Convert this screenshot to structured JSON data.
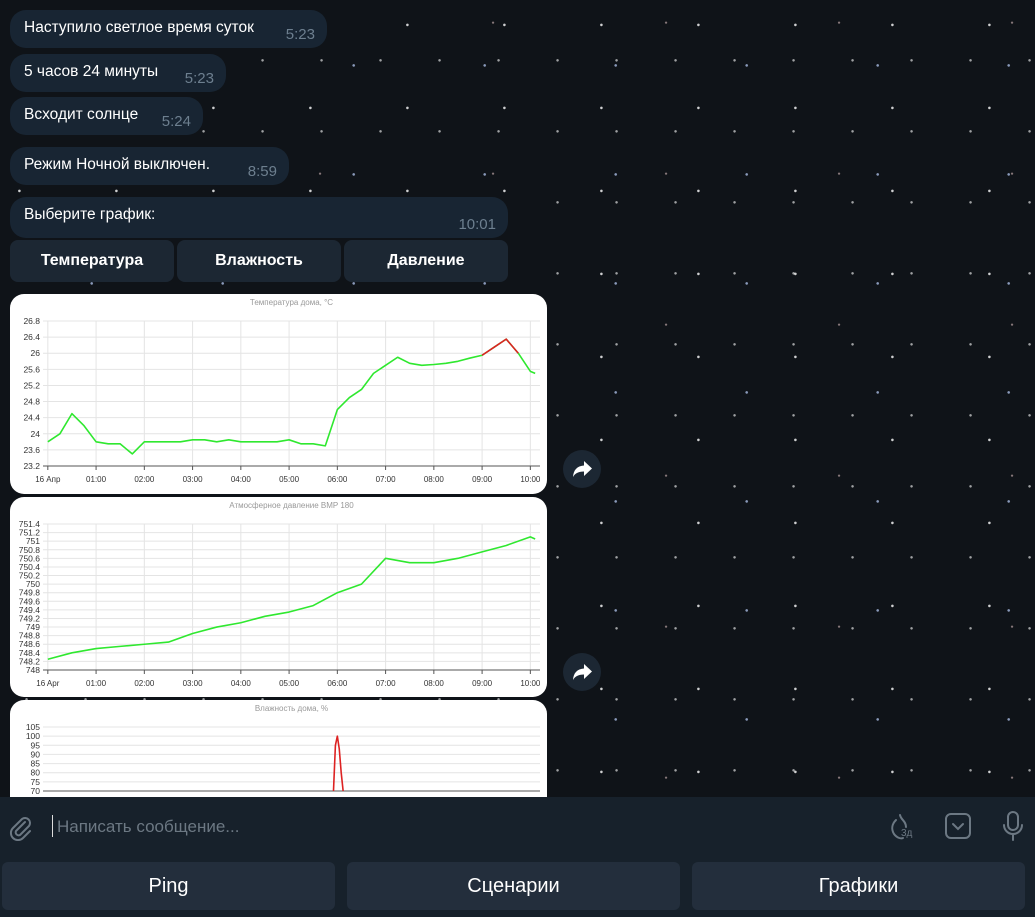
{
  "messages": [
    {
      "text": "Наступило светлое время суток",
      "time": "5:23"
    },
    {
      "text": "5 часов 24 минуты",
      "time": "5:23"
    },
    {
      "text": "Всходит солнце",
      "time": "5:24"
    },
    {
      "text": "Режим Ночной выключен.",
      "time": "8:59"
    }
  ],
  "prompt": {
    "text": "Выберите график:",
    "time": "10:01"
  },
  "inline_buttons": [
    "Температура",
    "Влажность",
    "Давление"
  ],
  "chart_data": [
    {
      "type": "line",
      "title": "Температура дома, °C",
      "x": [
        0,
        0.25,
        0.5,
        0.75,
        1,
        1.25,
        1.5,
        1.75,
        2,
        2.25,
        2.5,
        2.75,
        3,
        3.25,
        3.5,
        3.75,
        4,
        4.25,
        4.5,
        4.75,
        5,
        5.25,
        5.5,
        5.75,
        6,
        6.25,
        6.5,
        6.75,
        7,
        7.25,
        7.5,
        7.75,
        8,
        8.25,
        8.5,
        8.75,
        9,
        9.25,
        9.5,
        9.75,
        10,
        10.1
      ],
      "series": [
        {
          "color": "#2fe82f",
          "values": [
            23.8,
            24.0,
            24.5,
            24.2,
            23.8,
            23.75,
            23.75,
            23.5,
            23.8,
            23.8,
            23.8,
            23.8,
            23.85,
            23.85,
            23.8,
            23.85,
            23.8,
            23.8,
            23.8,
            23.8,
            23.85,
            23.75,
            23.75,
            23.7,
            24.6,
            24.9,
            25.1,
            25.5,
            25.7,
            25.9,
            25.75,
            25.7,
            25.72,
            25.75,
            25.8,
            25.88,
            25.95,
            26.15,
            26.35,
            26.0,
            25.55,
            25.5
          ]
        },
        {
          "color": "#dd2222",
          "values": [
            null,
            null,
            null,
            null,
            null,
            null,
            null,
            null,
            null,
            null,
            null,
            null,
            null,
            null,
            null,
            null,
            null,
            null,
            null,
            null,
            null,
            null,
            null,
            null,
            null,
            null,
            null,
            null,
            null,
            null,
            null,
            null,
            null,
            null,
            null,
            null,
            25.95,
            26.15,
            26.35,
            26.0,
            null,
            null
          ]
        }
      ],
      "xlim": [
        -0.1,
        10.2
      ],
      "ylim": [
        23.2,
        26.8
      ],
      "xticks": [
        {
          "value": 0,
          "label": "16 Апр"
        },
        {
          "value": 1,
          "label": "01:00"
        },
        {
          "value": 2,
          "label": "02:00"
        },
        {
          "value": 3,
          "label": "03:00"
        },
        {
          "value": 4,
          "label": "04:00"
        },
        {
          "value": 5,
          "label": "05:00"
        },
        {
          "value": 6,
          "label": "06:00"
        },
        {
          "value": 7,
          "label": "07:00"
        },
        {
          "value": 8,
          "label": "08:00"
        },
        {
          "value": 9,
          "label": "09:00"
        },
        {
          "value": 10,
          "label": "10:00"
        }
      ],
      "yticks": [
        23.2,
        23.6,
        24,
        24.4,
        24.8,
        25.2,
        25.6,
        26,
        26.4,
        26.8
      ],
      "grid": true
    },
    {
      "type": "line",
      "title": "Атмосферное давление BMP 180",
      "x": [
        0,
        0.5,
        1,
        1.5,
        2,
        2.5,
        3,
        3.5,
        4,
        4.5,
        5,
        5.5,
        6,
        6.5,
        7,
        7.5,
        8,
        8.5,
        9,
        9.5,
        10,
        10.1
      ],
      "series": [
        {
          "color": "#2fe82f",
          "values": [
            748.25,
            748.4,
            748.5,
            748.55,
            748.6,
            748.65,
            748.85,
            749.0,
            749.1,
            749.25,
            749.35,
            749.5,
            749.8,
            750.0,
            750.6,
            750.5,
            750.5,
            750.6,
            750.75,
            750.9,
            751.1,
            751.05
          ]
        }
      ],
      "xlim": [
        -0.1,
        10.2
      ],
      "ylim": [
        748,
        751.4
      ],
      "xticks": [
        {
          "value": 0,
          "label": "16 Apr"
        },
        {
          "value": 1,
          "label": "01:00"
        },
        {
          "value": 2,
          "label": "02:00"
        },
        {
          "value": 3,
          "label": "03:00"
        },
        {
          "value": 4,
          "label": "04:00"
        },
        {
          "value": 5,
          "label": "05:00"
        },
        {
          "value": 6,
          "label": "06:00"
        },
        {
          "value": 7,
          "label": "07:00"
        },
        {
          "value": 8,
          "label": "08:00"
        },
        {
          "value": 9,
          "label": "09:00"
        },
        {
          "value": 10,
          "label": "10:00"
        }
      ],
      "yticks": [
        748,
        748.2,
        748.4,
        748.6,
        748.8,
        749,
        749.2,
        749.4,
        749.6,
        749.8,
        750,
        750.2,
        750.4,
        750.6,
        750.8,
        751,
        751.2,
        751.4
      ],
      "grid": true
    },
    {
      "type": "line",
      "title": "Влажность дома, %",
      "x": [
        5.92,
        5.96,
        6.0,
        6.04,
        6.08,
        6.12
      ],
      "series": [
        {
          "color": "#dd2222",
          "values": [
            70,
            95,
            100,
            93,
            80,
            70
          ]
        }
      ],
      "xlim": [
        -0.1,
        10.2
      ],
      "ylim": [
        70,
        105
      ],
      "yticks": [
        70,
        75,
        80,
        85,
        90,
        95,
        100,
        105
      ],
      "grid": true
    }
  ],
  "input": {
    "placeholder": "Написать сообщение...",
    "timer_label": "3д"
  },
  "keyboard": [
    "Ping",
    "Сценарии",
    "Графики"
  ]
}
